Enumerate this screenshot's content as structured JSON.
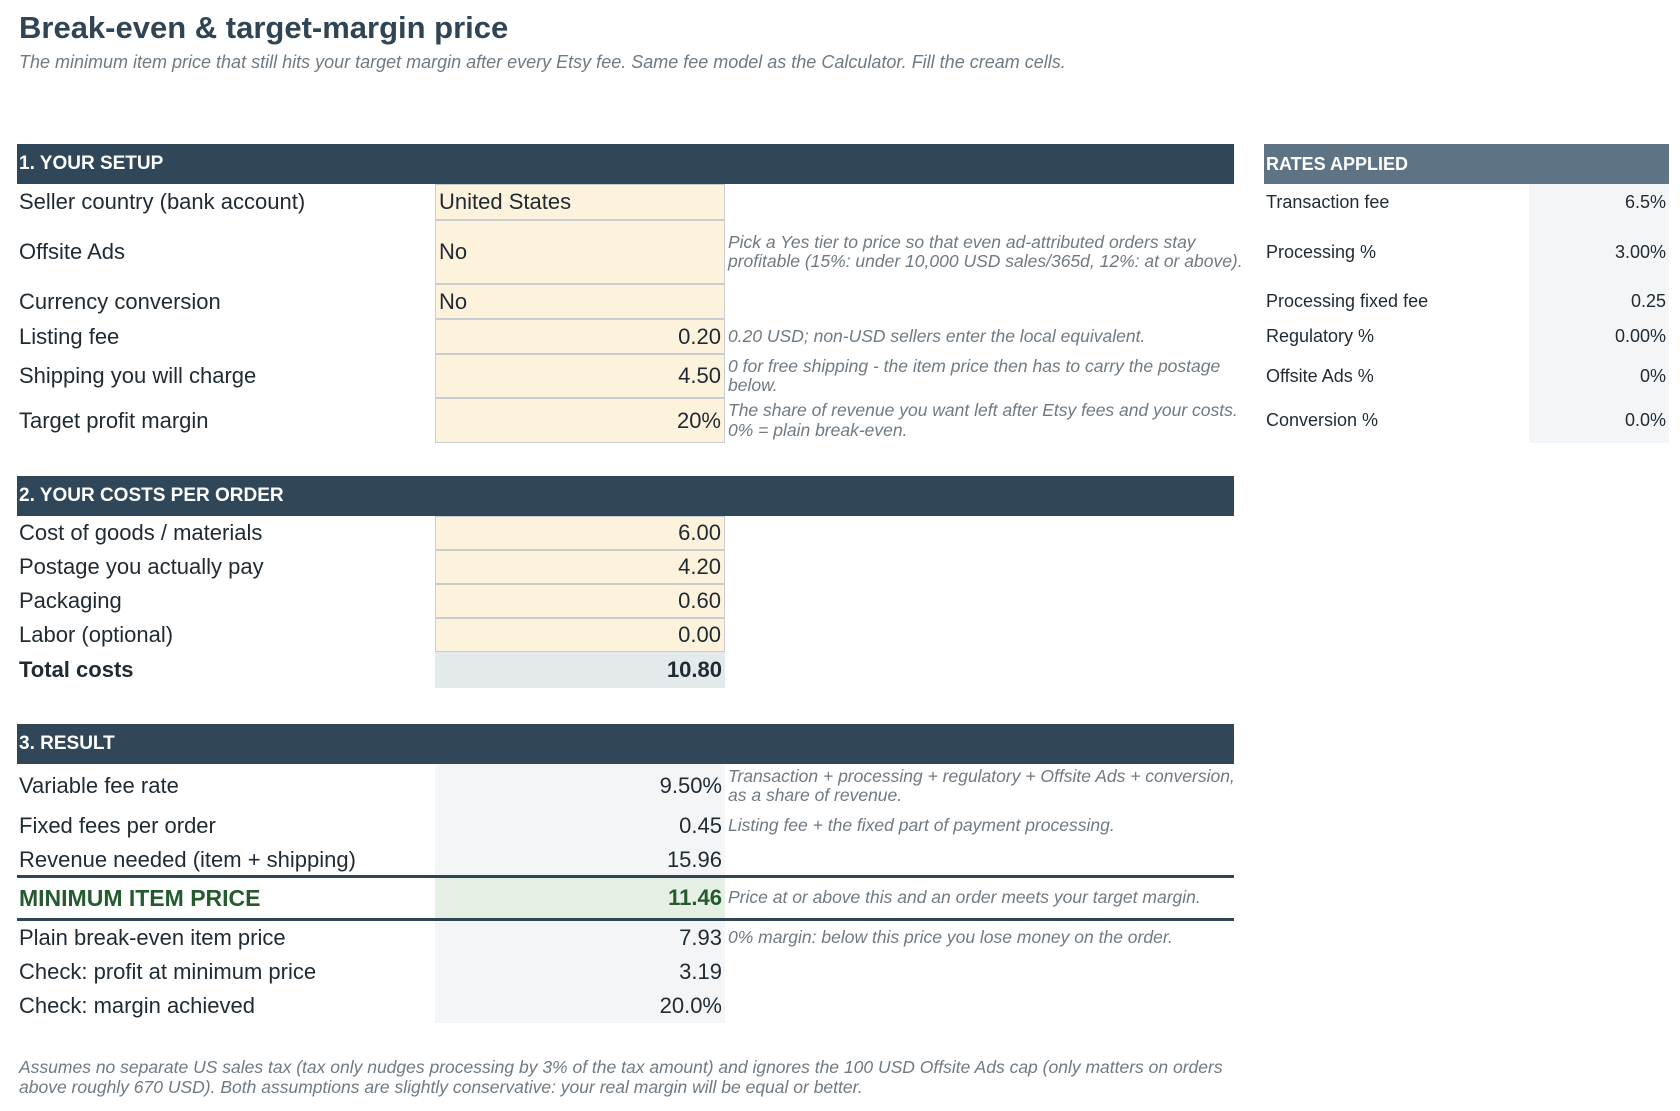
{
  "title": "Break-even & target-margin price",
  "subtitle": "The minimum item price that still hits your target margin after every Etsy fee. Same fee model as the Calculator. Fill the cream cells.",
  "setup": {
    "header": "1. YOUR SETUP",
    "rows": [
      {
        "label": "Seller country (bank account)",
        "value": "United States",
        "note": ""
      },
      {
        "label": "Offsite Ads",
        "value": "No",
        "note": "Pick a Yes tier to price so that even ad-attributed orders stay profitable (15%: under 10,000 USD sales/365d, 12%: at or above)."
      },
      {
        "label": "Currency conversion",
        "value": "No",
        "note": ""
      },
      {
        "label": "Listing fee",
        "value": "0.20",
        "note": "0.20 USD; non-USD sellers enter the local equivalent."
      },
      {
        "label": "Shipping you will charge",
        "value": "4.50",
        "note": "0 for free shipping - the item price then has to carry the postage below."
      },
      {
        "label": "Target profit margin",
        "value": "20%",
        "note": "The share of revenue you want left after Etsy fees and your costs. 0% = plain break-even."
      }
    ]
  },
  "rates": {
    "header": "RATES APPLIED",
    "rows": [
      {
        "label": "Transaction fee",
        "value": "6.5%"
      },
      {
        "label": "Processing %",
        "value": "3.00%"
      },
      {
        "label": "Processing fixed fee",
        "value": "0.25"
      },
      {
        "label": "Regulatory %",
        "value": "0.00%"
      },
      {
        "label": "Offsite Ads %",
        "value": "0%"
      },
      {
        "label": "Conversion %",
        "value": "0.0%"
      }
    ]
  },
  "costs": {
    "header": "2. YOUR COSTS PER ORDER",
    "rows": [
      {
        "label": "Cost of goods / materials",
        "value": "6.00"
      },
      {
        "label": "Postage you actually pay",
        "value": "4.20"
      },
      {
        "label": "Packaging",
        "value": "0.60"
      },
      {
        "label": "Labor (optional)",
        "value": "0.00"
      }
    ],
    "total_label": "Total costs",
    "total_value": "10.80"
  },
  "result": {
    "header": "3. RESULT",
    "rows": [
      {
        "label": "Variable fee rate",
        "value": "9.50%",
        "note": "Transaction + processing + regulatory + Offsite Ads + conversion, as a share of revenue."
      },
      {
        "label": "Fixed fees per order",
        "value": "0.45",
        "note": "Listing fee + the fixed part of payment processing."
      },
      {
        "label": "Revenue needed (item + shipping)",
        "value": "15.96",
        "note": ""
      }
    ],
    "min_label": "MINIMUM ITEM PRICE",
    "min_value": "11.46",
    "min_note": "Price at or above this and an order meets your target margin.",
    "after_rows": [
      {
        "label": "Plain break-even item price",
        "value": "7.93",
        "note": "0% margin: below this price you lose money on the order."
      },
      {
        "label": "Check: profit at minimum price",
        "value": "3.19",
        "note": ""
      },
      {
        "label": "Check: margin achieved",
        "value": "20.0%",
        "note": ""
      }
    ]
  },
  "footer": "Assumes no separate US sales tax (tax only nudges processing by 3% of the tax amount) and ignores the 100 USD Offsite Ads cap (only matters on orders above roughly 670 USD). Both assumptions are slightly conservative: your real margin will be equal or better."
}
